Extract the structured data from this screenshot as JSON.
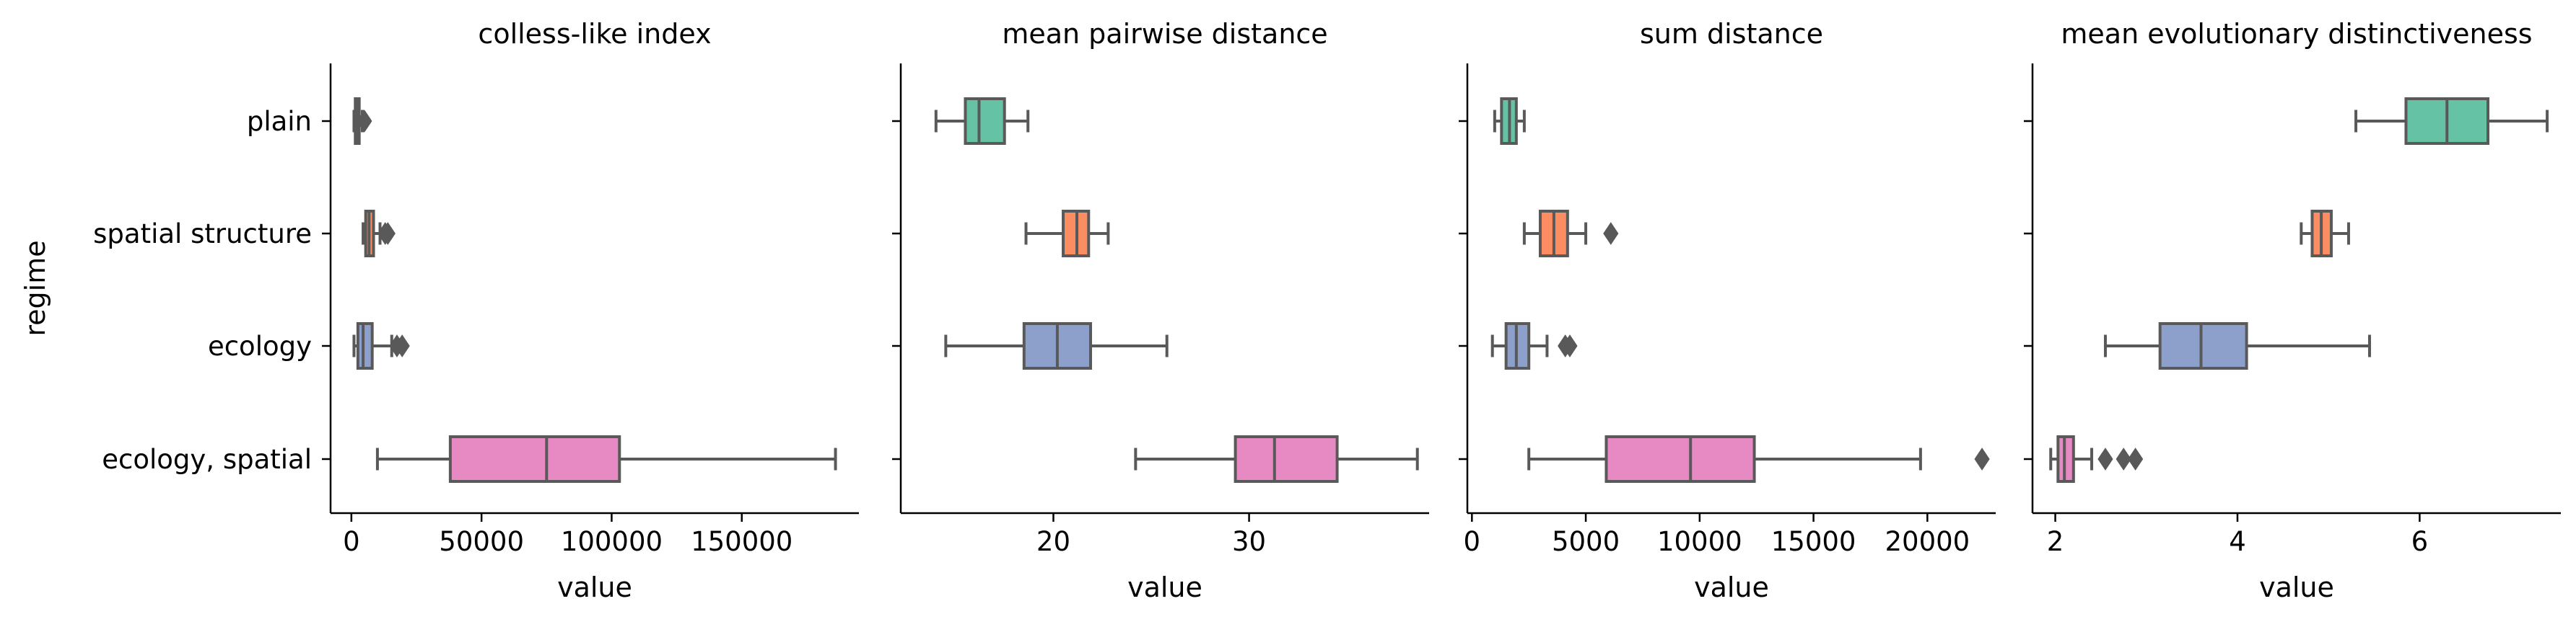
{
  "chart_data": {
    "type": "boxplot",
    "y_label": "regime",
    "categories": [
      "plain",
      "spatial structure",
      "ecology",
      "ecology, spatial"
    ],
    "palette": [
      "#66c2a5",
      "#fc8d62",
      "#8da0cb",
      "#e78ac3"
    ],
    "line_color": "#595959",
    "panels": [
      {
        "title": "colless-like index",
        "xlabel": "value",
        "xlim": [
          -8000,
          195000
        ],
        "xticks": [
          0,
          50000,
          100000,
          150000
        ],
        "xtick_labels": [
          "0",
          "50000",
          "100000",
          "150000"
        ],
        "boxes": [
          {
            "whislo": 1000,
            "q1": 1500,
            "med": 2200,
            "q3": 3000,
            "whishi": 4200,
            "fliers": [
              5000
            ]
          },
          {
            "whislo": 4500,
            "q1": 5500,
            "med": 6800,
            "q3": 8500,
            "whishi": 11000,
            "fliers": [
              13000,
              14000
            ]
          },
          {
            "whislo": 1000,
            "q1": 2500,
            "med": 4500,
            "q3": 8000,
            "whishi": 15500,
            "fliers": [
              17500,
              19500
            ]
          },
          {
            "whislo": 10000,
            "q1": 38000,
            "med": 75000,
            "q3": 103000,
            "whishi": 186000,
            "fliers": []
          }
        ]
      },
      {
        "title": "mean pairwise distance",
        "xlabel": "value",
        "xlim": [
          12.2,
          39.2
        ],
        "xticks": [
          20,
          30
        ],
        "xtick_labels": [
          "20",
          "30"
        ],
        "boxes": [
          {
            "whislo": 14.0,
            "q1": 15.5,
            "med": 16.2,
            "q3": 17.5,
            "whishi": 18.7,
            "fliers": []
          },
          {
            "whislo": 18.6,
            "q1": 20.5,
            "med": 21.2,
            "q3": 21.8,
            "whishi": 22.8,
            "fliers": []
          },
          {
            "whislo": 14.5,
            "q1": 18.5,
            "med": 20.2,
            "q3": 21.9,
            "whishi": 25.8,
            "fliers": []
          },
          {
            "whislo": 24.2,
            "q1": 29.3,
            "med": 31.3,
            "q3": 34.5,
            "whishi": 38.6,
            "fliers": []
          }
        ]
      },
      {
        "title": "sum distance",
        "xlabel": "value",
        "xlim": [
          -200,
          23000
        ],
        "xticks": [
          0,
          5000,
          10000,
          15000,
          20000
        ],
        "xtick_labels": [
          "0",
          "5000",
          "10000",
          "15000",
          "20000"
        ],
        "boxes": [
          {
            "whislo": 1000,
            "q1": 1300,
            "med": 1650,
            "q3": 1950,
            "whishi": 2300,
            "fliers": []
          },
          {
            "whislo": 2300,
            "q1": 3000,
            "med": 3600,
            "q3": 4200,
            "whishi": 5000,
            "fliers": [
              6100
            ]
          },
          {
            "whislo": 900,
            "q1": 1500,
            "med": 1950,
            "q3": 2500,
            "whishi": 3300,
            "fliers": [
              4100,
              4300
            ]
          },
          {
            "whislo": 2500,
            "q1": 5900,
            "med": 9600,
            "q3": 12400,
            "whishi": 19700,
            "fliers": [
              22400
            ]
          }
        ]
      },
      {
        "title": "mean evolutionary distinctiveness",
        "xlabel": "value",
        "xlim": [
          1.75,
          7.55
        ],
        "xticks": [
          2,
          4,
          6
        ],
        "xtick_labels": [
          "2",
          "4",
          "6"
        ],
        "boxes": [
          {
            "whislo": 5.3,
            "q1": 5.85,
            "med": 6.3,
            "q3": 6.75,
            "whishi": 7.4,
            "fliers": []
          },
          {
            "whislo": 4.7,
            "q1": 4.82,
            "med": 4.92,
            "q3": 5.03,
            "whishi": 5.22,
            "fliers": []
          },
          {
            "whislo": 2.55,
            "q1": 3.15,
            "med": 3.6,
            "q3": 4.1,
            "whishi": 5.45,
            "fliers": []
          },
          {
            "whislo": 1.95,
            "q1": 2.03,
            "med": 2.1,
            "q3": 2.2,
            "whishi": 2.4,
            "fliers": [
              2.55,
              2.75,
              2.88
            ]
          }
        ]
      }
    ]
  }
}
